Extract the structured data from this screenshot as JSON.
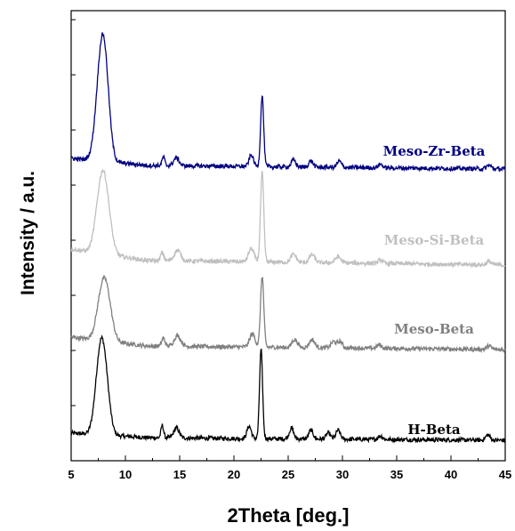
{
  "chart_data": {
    "type": "line",
    "xlabel": "2Theta [deg.]",
    "ylabel": "Intensity / a.u.",
    "xlim": [
      5,
      45
    ],
    "xticks": [
      5,
      10,
      15,
      20,
      25,
      30,
      35,
      40,
      45
    ],
    "yticks_count": 9,
    "grid": false,
    "series": [
      {
        "name": "H-Beta",
        "color": "#000000",
        "baseline": 495,
        "noise": 2.4,
        "peaks": [
          [
            7.7,
            90,
            0.45
          ],
          [
            8.2,
            35,
            0.4
          ],
          [
            13.4,
            14,
            0.12
          ],
          [
            14.7,
            11,
            0.25
          ],
          [
            21.4,
            14,
            0.2
          ],
          [
            22.5,
            100,
            0.14
          ],
          [
            25.3,
            12,
            0.2
          ],
          [
            27.1,
            10,
            0.2
          ],
          [
            28.7,
            7,
            0.2
          ],
          [
            29.6,
            10,
            0.2
          ],
          [
            33.5,
            4,
            0.2
          ],
          [
            43.4,
            6,
            0.2
          ]
        ],
        "tail": [
          [
            5,
            8
          ],
          [
            12,
            3
          ],
          [
            20,
            2
          ],
          [
            45,
            0
          ]
        ]
      },
      {
        "name": "Meso-Beta",
        "color": "#808080",
        "baseline": 393,
        "noise": 2.4,
        "peaks": [
          [
            7.9,
            55,
            0.5
          ],
          [
            8.4,
            25,
            0.45
          ],
          [
            13.5,
            9,
            0.15
          ],
          [
            14.8,
            12,
            0.3
          ],
          [
            21.7,
            15,
            0.25
          ],
          [
            22.6,
            80,
            0.15
          ],
          [
            25.6,
            9,
            0.25
          ],
          [
            27.2,
            9,
            0.25
          ],
          [
            29.2,
            7,
            0.25
          ],
          [
            29.8,
            7,
            0.2
          ],
          [
            33.4,
            4,
            0.2
          ],
          [
            43.5,
            4,
            0.2
          ]
        ],
        "tail": [
          [
            5,
            14
          ],
          [
            12,
            4
          ],
          [
            20,
            3
          ],
          [
            45,
            0
          ]
        ]
      },
      {
        "name": "Meso-Si-Beta",
        "color": "#c0c0c0",
        "baseline": 298,
        "noise": 2.4,
        "peaks": [
          [
            7.8,
            75,
            0.5
          ],
          [
            8.3,
            30,
            0.45
          ],
          [
            13.4,
            9,
            0.15
          ],
          [
            14.8,
            12,
            0.3
          ],
          [
            21.6,
            15,
            0.25
          ],
          [
            22.6,
            100,
            0.15
          ],
          [
            25.5,
            9,
            0.25
          ],
          [
            27.2,
            9,
            0.25
          ],
          [
            29.6,
            7,
            0.25
          ],
          [
            33.5,
            4,
            0.2
          ],
          [
            43.5,
            4,
            0.2
          ]
        ],
        "tail": [
          [
            5,
            18
          ],
          [
            12,
            5
          ],
          [
            20,
            4
          ],
          [
            45,
            0
          ]
        ]
      },
      {
        "name": "Meso-Zr-Beta",
        "color": "#000080",
        "baseline": 190,
        "noise": 2.4,
        "peaks": [
          [
            7.8,
            115,
            0.48
          ],
          [
            8.2,
            40,
            0.4
          ],
          [
            13.5,
            10,
            0.12
          ],
          [
            14.7,
            9,
            0.25
          ],
          [
            21.6,
            13,
            0.2
          ],
          [
            22.6,
            80,
            0.14
          ],
          [
            25.5,
            8,
            0.2
          ],
          [
            27.1,
            7,
            0.2
          ],
          [
            29.7,
            7,
            0.2
          ],
          [
            33.5,
            4,
            0.2
          ],
          [
            43.5,
            4,
            0.2
          ]
        ],
        "tail": [
          [
            5,
            12
          ],
          [
            12,
            4
          ],
          [
            20,
            3
          ],
          [
            45,
            0
          ]
        ]
      }
    ],
    "labels": {
      "H-Beta": "H-Beta",
      "Meso-Beta": "Meso-Beta",
      "Meso-Si-Beta": "Meso-Si-Beta",
      "Meso-Zr-Beta": "Meso-Zr-Beta"
    }
  }
}
